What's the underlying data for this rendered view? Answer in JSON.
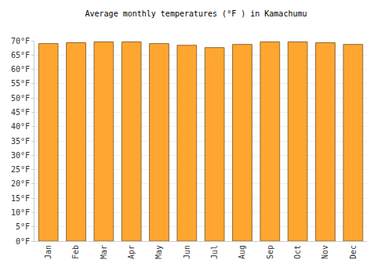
{
  "chart_data": {
    "type": "bar",
    "title": "Average monthly temperatures (°F ) in Kamachumu",
    "categories": [
      "Jan",
      "Feb",
      "Mar",
      "Apr",
      "May",
      "Jun",
      "Jul",
      "Aug",
      "Sep",
      "Oct",
      "Nov",
      "Dec"
    ],
    "values": [
      69,
      69.3,
      69.6,
      69.6,
      69,
      68.4,
      67.6,
      68.7,
      69.6,
      69.6,
      69.3,
      68.7
    ],
    "color": "#ffa630",
    "ylim": [
      0,
      70
    ],
    "yticks": [
      {
        "value": 0,
        "label": "0°F"
      },
      {
        "value": 5,
        "label": "5°F"
      },
      {
        "value": 10,
        "label": "10°F"
      },
      {
        "value": 15,
        "label": "15°F"
      },
      {
        "value": 20,
        "label": "20°F"
      },
      {
        "value": 25,
        "label": "25°F"
      },
      {
        "value": 30,
        "label": "30°F"
      },
      {
        "value": 35,
        "label": "35°F"
      },
      {
        "value": 40,
        "label": "40°F"
      },
      {
        "value": 45,
        "label": "45°F"
      },
      {
        "value": 50,
        "label": "50°F"
      },
      {
        "value": 55,
        "label": "55°F"
      },
      {
        "value": 60,
        "label": "60°F"
      },
      {
        "value": 65,
        "label": "65°F"
      },
      {
        "value": 70,
        "label": "70°F"
      }
    ],
    "grid": true
  }
}
